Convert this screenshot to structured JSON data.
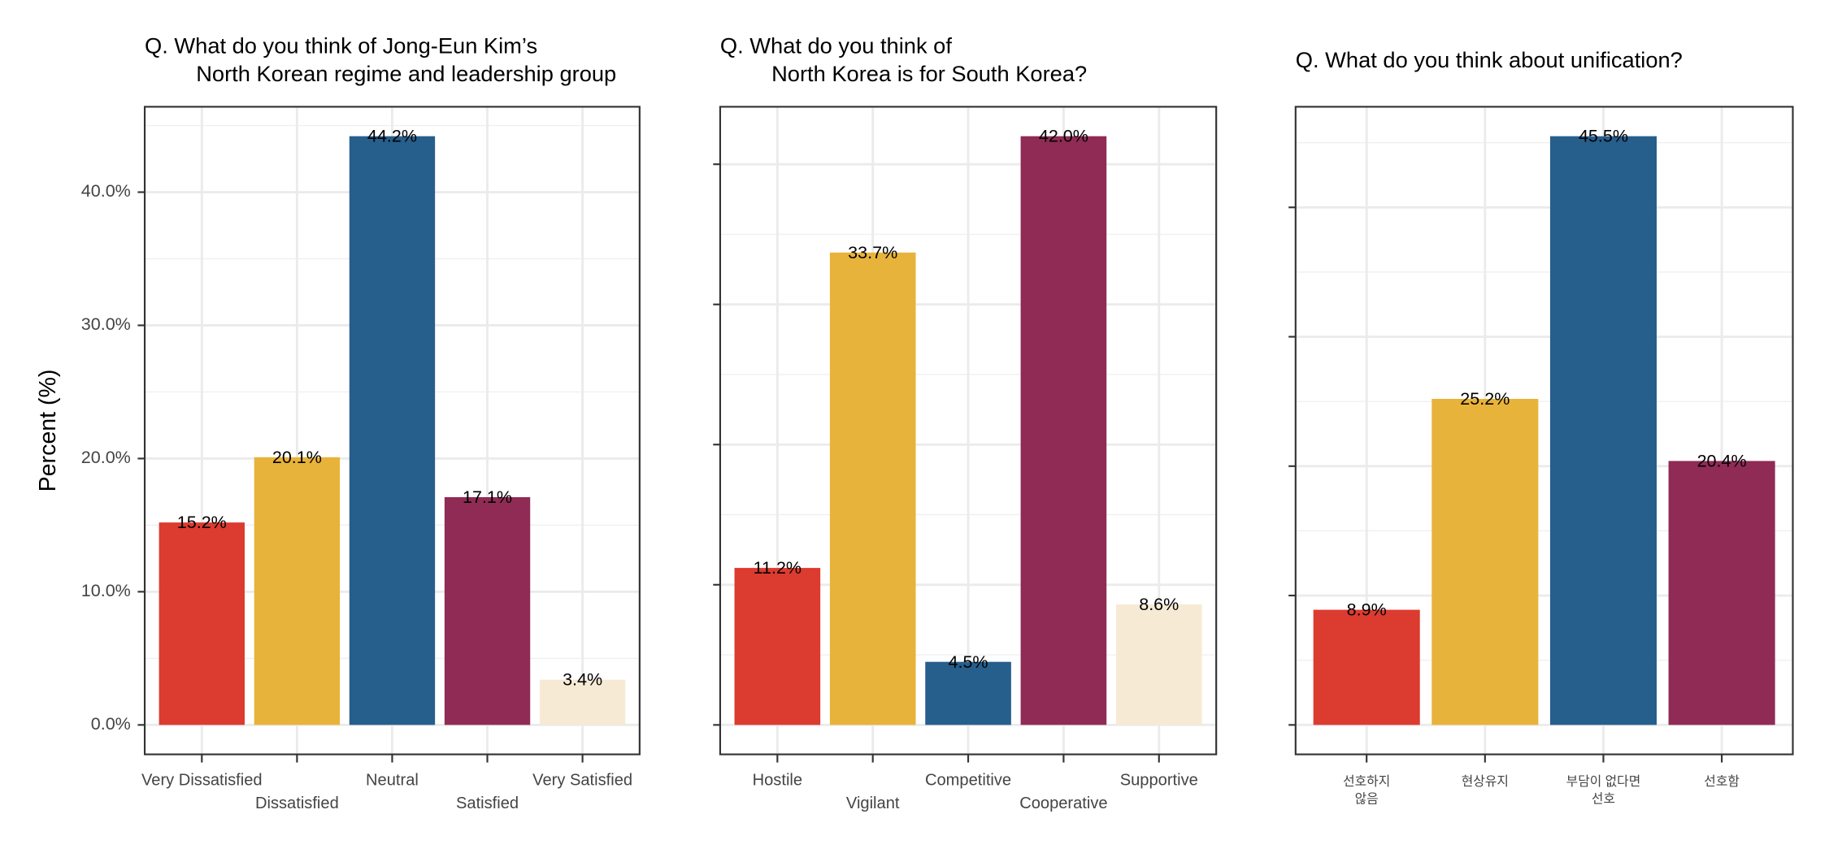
{
  "chart_data": [
    {
      "type": "bar",
      "title": [
        "Q. What do you think of Jong-Eun Kim’s",
        "North Korean regime and leadership group"
      ],
      "ylabel": "Percent (%)",
      "categories": [
        "Very Dissatisfied",
        "Dissatisfied",
        "Neutral",
        "Satisfied",
        "Very Satisfied"
      ],
      "values": [
        15.2,
        20.1,
        44.2,
        17.1,
        3.4
      ],
      "value_labels": [
        "15.2%",
        "20.1%",
        "44.2%",
        "17.1%",
        "3.4%"
      ],
      "colors": [
        "#dc3b2f",
        "#e8b33a",
        "#265e8c",
        "#8f2b55",
        "#f7ead5"
      ],
      "ylim": [
        -2.21,
        46.41
      ],
      "yticks": [
        {
          "value": 0,
          "label": "0.0%"
        },
        {
          "value": 10,
          "label": "10.0%"
        },
        {
          "value": 20,
          "label": "20.0%"
        },
        {
          "value": 30,
          "label": "30.0%"
        },
        {
          "value": 40,
          "label": "40.0%"
        }
      ],
      "ytick_labels": true,
      "grid": true
    },
    {
      "type": "bar",
      "title": [
        "Q. What do you think of",
        "North Korea is for South Korea?"
      ],
      "categories": [
        "Hostile",
        "Vigilant",
        "Competitive",
        "Cooperative",
        "Supportive"
      ],
      "values": [
        11.2,
        33.7,
        4.5,
        42.0,
        8.6
      ],
      "value_labels": [
        "11.2%",
        "33.7%",
        "4.5%",
        "42.0%",
        "8.6%"
      ],
      "colors": [
        "#dc3b2f",
        "#e8b33a",
        "#265e8c",
        "#8f2b55",
        "#f7ead5"
      ],
      "ylim": [
        -2.1,
        44.1
      ],
      "yticks": [
        0,
        10,
        20,
        30,
        40
      ],
      "ytick_labels": false,
      "grid": true
    },
    {
      "type": "bar",
      "title": [
        "Q. What do you think about unification?"
      ],
      "categories": [
        "선호하지\n않음",
        "현상유지",
        "부담이 없다면\n선호",
        "선호함"
      ],
      "values": [
        8.9,
        25.2,
        45.5,
        20.4
      ],
      "value_labels": [
        "8.9%",
        "25.2%",
        "45.5%",
        "20.4%"
      ],
      "colors": [
        "#dc3b2f",
        "#e8b33a",
        "#265e8c",
        "#8f2b55"
      ],
      "ylim": [
        -2.275,
        47.775
      ],
      "yticks": [
        0,
        10,
        20,
        30,
        40
      ],
      "ytick_labels": false,
      "grid": true
    }
  ]
}
